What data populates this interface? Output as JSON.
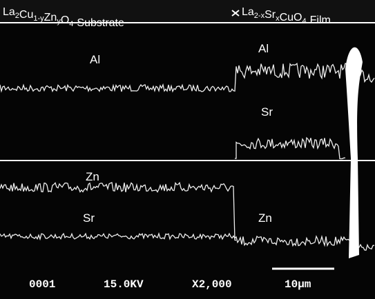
{
  "header": {
    "substrate": [
      [
        "La",
        "2"
      ],
      [
        "Cu",
        "1-y"
      ],
      [
        "Zn",
        "y"
      ],
      [
        "O",
        "4"
      ]
    ],
    "substrate_word": "Substrate",
    "film": [
      [
        "La",
        "2-x"
      ],
      [
        "Sr",
        "x"
      ],
      [
        "Cu",
        ""
      ],
      [
        "O",
        "4"
      ]
    ],
    "film_word": "Film"
  },
  "labels": [
    "Al",
    "Al",
    "Sr",
    "Zn",
    "Sr",
    "Zn"
  ],
  "footer": {
    "number": "0001",
    "voltage": "15.0KV",
    "magnification": "X2,000",
    "scale": "10µm"
  }
}
